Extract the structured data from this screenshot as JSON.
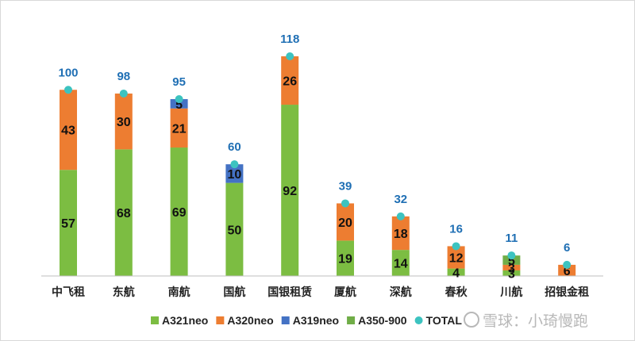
{
  "chart_data": {
    "type": "bar",
    "stacked": true,
    "categories": [
      "中飞租",
      "东航",
      "南航",
      "国航",
      "国银租赁",
      "厦航",
      "深航",
      "春秋",
      "川航",
      "招银金租"
    ],
    "series": [
      {
        "name": "A321neo",
        "color": "#7cbd42",
        "values": [
          57,
          68,
          69,
          50,
          92,
          19,
          14,
          4,
          3,
          0
        ]
      },
      {
        "name": "A320neo",
        "color": "#ed7d31",
        "values": [
          43,
          30,
          21,
          0,
          26,
          20,
          18,
          12,
          3,
          6
        ]
      },
      {
        "name": "A319neo",
        "color": "#4472c4",
        "values": [
          0,
          0,
          5,
          10,
          0,
          0,
          0,
          0,
          0,
          0
        ]
      },
      {
        "name": "A350-900",
        "color": "#70ad47",
        "values": [
          0,
          0,
          0,
          0,
          0,
          0,
          0,
          0,
          5,
          0
        ]
      }
    ],
    "total": {
      "name": "TOTAL",
      "color": "#3cc3c0",
      "label_color": "#1f6fb4",
      "values": [
        100,
        98,
        95,
        60,
        118,
        39,
        32,
        16,
        11,
        6
      ]
    },
    "ylim": [
      0,
      118
    ],
    "grid": false,
    "legend": "bottom"
  },
  "watermark": {
    "text": "雪球：小琦慢跑"
  }
}
